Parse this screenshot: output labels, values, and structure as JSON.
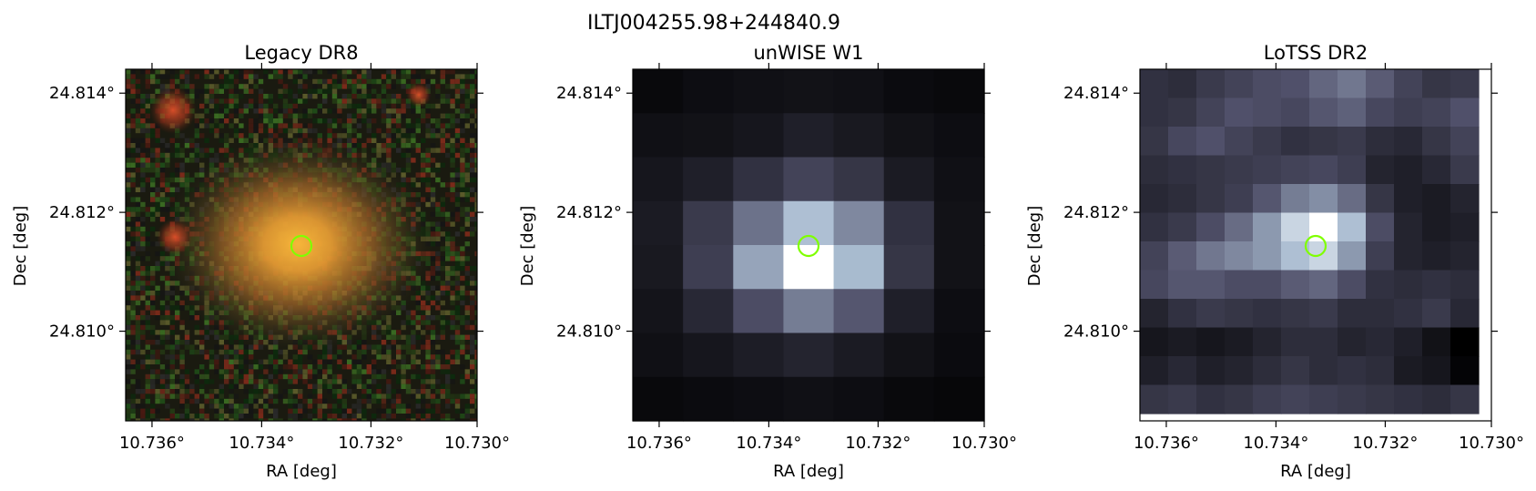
{
  "figure": {
    "suptitle": "ILTJ004255.98+244840.9"
  },
  "panels": [
    {
      "title": "Legacy DR8",
      "colormap": "rgb-optical",
      "xlabel": "RA [deg]",
      "ylabel": "Dec [deg]",
      "xticks": [
        "10.736°",
        "10.734°",
        "10.732°",
        "10.730°"
      ],
      "yticks": [
        "24.814°",
        "24.812°",
        "24.810°"
      ],
      "marker_color": "#7fff00"
    },
    {
      "title": "unWISE W1",
      "colormap": "bone",
      "xlabel": "RA [deg]",
      "ylabel": "Dec [deg]",
      "xticks": [
        "10.736°",
        "10.734°",
        "10.732°",
        "10.730°"
      ],
      "yticks": [
        "24.814°",
        "24.812°",
        "24.810°"
      ],
      "marker_color": "#7fff00"
    },
    {
      "title": "LoTSS DR2",
      "colormap": "bone",
      "xlabel": "RA [deg]",
      "ylabel": "Dec [deg]",
      "xticks": [
        "10.736°",
        "10.734°",
        "10.732°",
        "10.730°"
      ],
      "yticks": [
        "24.814°",
        "24.812°",
        "24.810°"
      ],
      "marker_color": "#7fff00"
    }
  ],
  "wise_grid": [
    [
      0.04,
      0.06,
      0.07,
      0.08,
      0.07,
      0.05,
      0.04
    ],
    [
      0.07,
      0.08,
      0.1,
      0.14,
      0.11,
      0.08,
      0.06
    ],
    [
      0.1,
      0.14,
      0.22,
      0.3,
      0.24,
      0.12,
      0.07
    ],
    [
      0.12,
      0.26,
      0.48,
      0.76,
      0.56,
      0.22,
      0.08
    ],
    [
      0.11,
      0.28,
      0.66,
      1.0,
      0.74,
      0.24,
      0.08
    ],
    [
      0.09,
      0.18,
      0.34,
      0.52,
      0.38,
      0.14,
      0.06
    ],
    [
      0.07,
      0.1,
      0.13,
      0.16,
      0.12,
      0.08,
      0.05
    ],
    [
      0.04,
      0.05,
      0.06,
      0.07,
      0.06,
      0.04,
      0.03
    ]
  ],
  "lotss_grid": [
    [
      0.22,
      0.2,
      0.26,
      0.3,
      0.34,
      0.36,
      0.44,
      0.5,
      0.4,
      0.3,
      0.24,
      0.26
    ],
    [
      0.22,
      0.24,
      0.3,
      0.36,
      0.34,
      0.32,
      0.38,
      0.42,
      0.32,
      0.28,
      0.3,
      0.36
    ],
    [
      0.24,
      0.32,
      0.36,
      0.3,
      0.26,
      0.22,
      0.24,
      0.26,
      0.2,
      0.18,
      0.24,
      0.3
    ],
    [
      0.2,
      0.22,
      0.24,
      0.26,
      0.28,
      0.3,
      0.32,
      0.28,
      0.16,
      0.14,
      0.18,
      0.26
    ],
    [
      0.18,
      0.2,
      0.24,
      0.28,
      0.38,
      0.52,
      0.58,
      0.46,
      0.24,
      0.14,
      0.12,
      0.16
    ],
    [
      0.22,
      0.26,
      0.34,
      0.46,
      0.62,
      0.84,
      1.0,
      0.76,
      0.34,
      0.16,
      0.12,
      0.14
    ],
    [
      0.3,
      0.4,
      0.5,
      0.56,
      0.62,
      0.76,
      0.84,
      0.62,
      0.28,
      0.16,
      0.14,
      0.16
    ],
    [
      0.32,
      0.38,
      0.38,
      0.34,
      0.34,
      0.4,
      0.44,
      0.34,
      0.22,
      0.2,
      0.22,
      0.2
    ],
    [
      0.16,
      0.22,
      0.26,
      0.24,
      0.22,
      0.24,
      0.26,
      0.2,
      0.2,
      0.22,
      0.26,
      0.18
    ],
    [
      0.1,
      0.12,
      0.1,
      0.12,
      0.16,
      0.2,
      0.2,
      0.16,
      0.18,
      0.14,
      0.08,
      0.0
    ],
    [
      0.14,
      0.18,
      0.14,
      0.16,
      0.2,
      0.24,
      0.2,
      0.22,
      0.2,
      0.12,
      0.1,
      0.02
    ],
    [
      0.24,
      0.26,
      0.22,
      0.24,
      0.28,
      0.3,
      0.28,
      0.26,
      0.24,
      0.22,
      0.2,
      0.24
    ]
  ]
}
